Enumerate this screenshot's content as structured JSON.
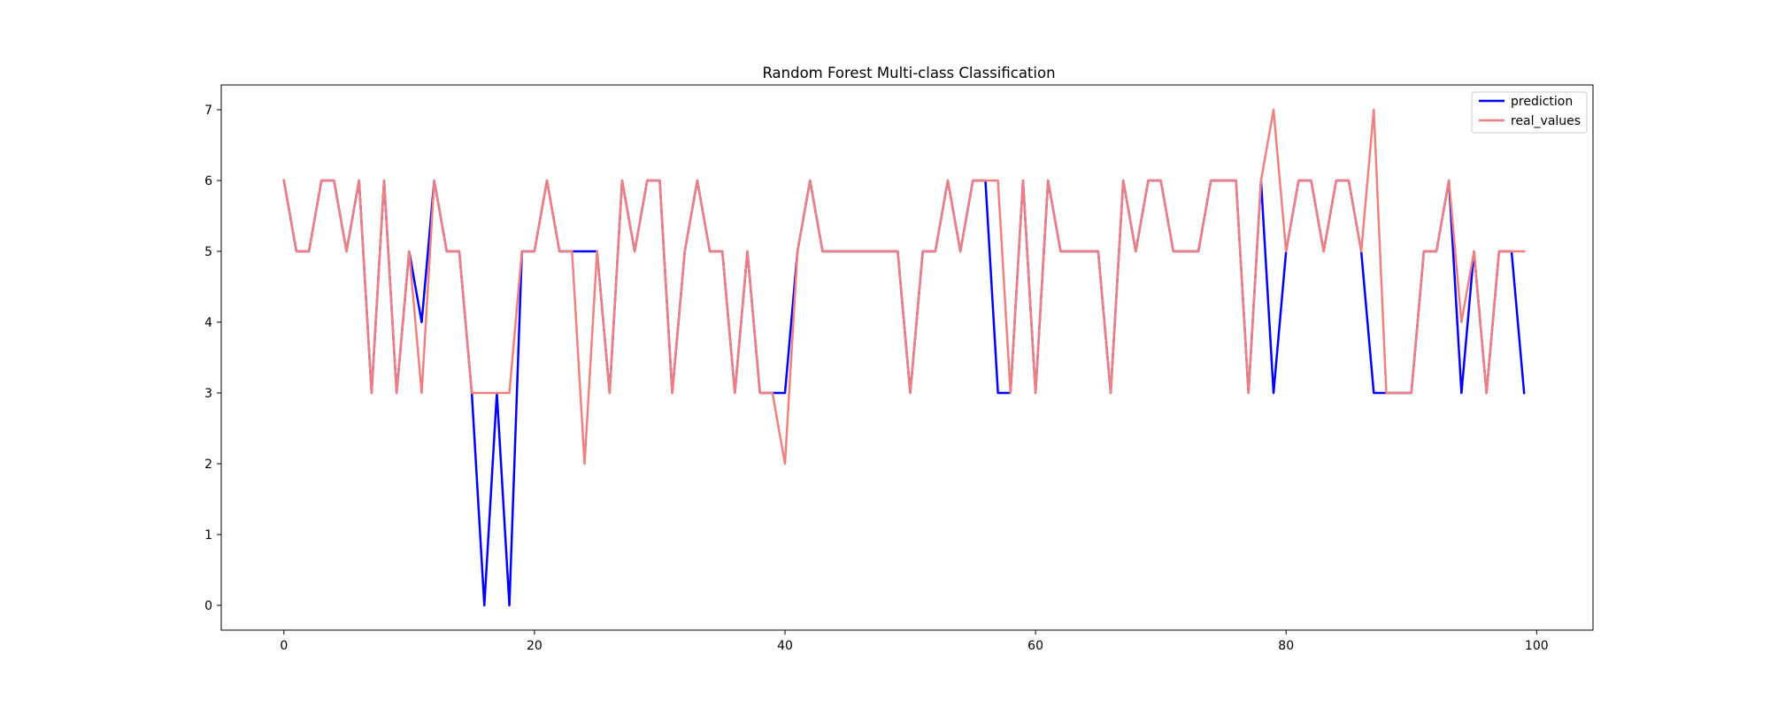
{
  "chart_data": {
    "type": "line",
    "title": "Random Forest Multi-class Classification",
    "xlabel": "",
    "ylabel": "",
    "xlim": [
      -5,
      104.5
    ],
    "ylim": [
      -0.35,
      7.35
    ],
    "xticks": [
      0,
      20,
      40,
      60,
      80,
      100
    ],
    "yticks": [
      0,
      1,
      2,
      3,
      4,
      5,
      6,
      7
    ],
    "grid": false,
    "legend_position": "top-right",
    "x": [
      0,
      1,
      2,
      3,
      4,
      5,
      6,
      7,
      8,
      9,
      10,
      11,
      12,
      13,
      14,
      15,
      16,
      17,
      18,
      19,
      20,
      21,
      22,
      23,
      24,
      25,
      26,
      27,
      28,
      29,
      30,
      31,
      32,
      33,
      34,
      35,
      36,
      37,
      38,
      39,
      40,
      41,
      42,
      43,
      44,
      45,
      46,
      47,
      48,
      49,
      50,
      51,
      52,
      53,
      54,
      55,
      56,
      57,
      58,
      59,
      60,
      61,
      62,
      63,
      64,
      65,
      66,
      67,
      68,
      69,
      70,
      71,
      72,
      73,
      74,
      75,
      76,
      77,
      78,
      79,
      80,
      81,
      82,
      83,
      84,
      85,
      86,
      87,
      88,
      89,
      90,
      91,
      92,
      93,
      94,
      95,
      96,
      97,
      98,
      99
    ],
    "series": [
      {
        "name": "prediction",
        "color": "#0000ff",
        "values": [
          6,
          5,
          5,
          6,
          6,
          5,
          6,
          3,
          6,
          3,
          5,
          4,
          6,
          5,
          5,
          3,
          0,
          3,
          0,
          5,
          5,
          6,
          5,
          5,
          5,
          5,
          3,
          6,
          5,
          6,
          6,
          3,
          5,
          6,
          5,
          5,
          3,
          5,
          3,
          3,
          3,
          5,
          6,
          5,
          5,
          5,
          5,
          5,
          5,
          5,
          3,
          5,
          5,
          6,
          5,
          6,
          6,
          3,
          3,
          6,
          3,
          6,
          5,
          5,
          5,
          5,
          3,
          6,
          5,
          6,
          6,
          5,
          5,
          5,
          6,
          6,
          6,
          3,
          6,
          3,
          5,
          6,
          6,
          5,
          6,
          6,
          5,
          3,
          3,
          3,
          3,
          5,
          5,
          6,
          3,
          5,
          3,
          5,
          5,
          3
        ]
      },
      {
        "name": "real_values",
        "color": "#f08080",
        "values": [
          6,
          5,
          5,
          6,
          6,
          5,
          6,
          3,
          6,
          3,
          5,
          3,
          6,
          5,
          5,
          3,
          3,
          3,
          3,
          5,
          5,
          6,
          5,
          5,
          2,
          5,
          3,
          6,
          5,
          6,
          6,
          3,
          5,
          6,
          5,
          5,
          3,
          5,
          3,
          3,
          2,
          5,
          6,
          5,
          5,
          5,
          5,
          5,
          5,
          5,
          3,
          5,
          5,
          6,
          5,
          6,
          6,
          6,
          3,
          6,
          3,
          6,
          5,
          5,
          5,
          5,
          3,
          6,
          5,
          6,
          6,
          5,
          5,
          5,
          6,
          6,
          6,
          3,
          6,
          7,
          5,
          6,
          6,
          5,
          6,
          6,
          5,
          7,
          3,
          3,
          3,
          5,
          5,
          6,
          4,
          5,
          3,
          5,
          5,
          5
        ]
      }
    ]
  }
}
